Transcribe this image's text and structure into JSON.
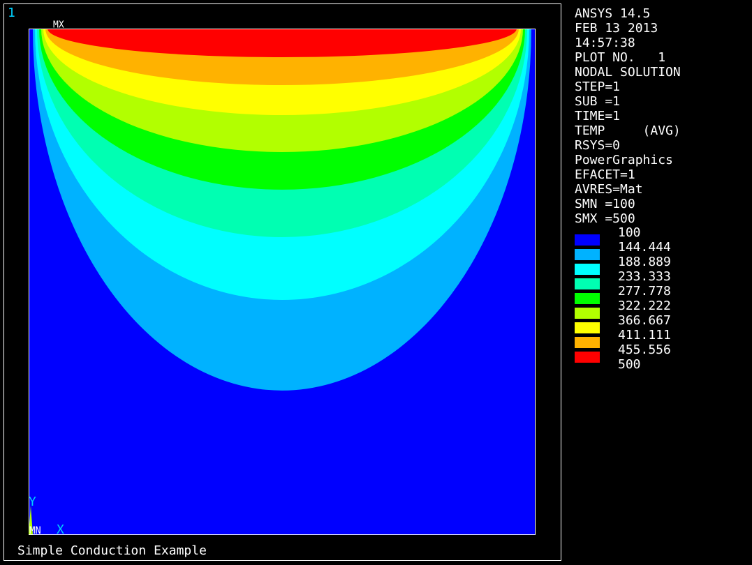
{
  "window_number": "1",
  "info": [
    "ANSYS 14.5",
    "FEB 13 2013",
    "14:57:38",
    "PLOT NO.   1",
    "NODAL SOLUTION",
    "STEP=1",
    "SUB =1",
    "TIME=1",
    "TEMP     (AVG)",
    "RSYS=0",
    "PowerGraphics",
    "EFACET=1",
    "AVRES=Mat",
    "SMN =100",
    "SMX =500"
  ],
  "legend": {
    "levels": [
      100,
      144.444,
      188.889,
      233.333,
      277.778,
      322.222,
      366.667,
      411.111,
      455.556,
      500
    ],
    "colors": [
      "#0000ff",
      "#00b2ff",
      "#00ffff",
      "#00ffb2",
      "#00ff00",
      "#b2ff00",
      "#ffff00",
      "#ffb200",
      "#ff0000"
    ]
  },
  "labels": {
    "max": "MX",
    "min": "MN",
    "y_axis": "Y",
    "x_axis": "X"
  },
  "title": "Simple Conduction Example"
}
